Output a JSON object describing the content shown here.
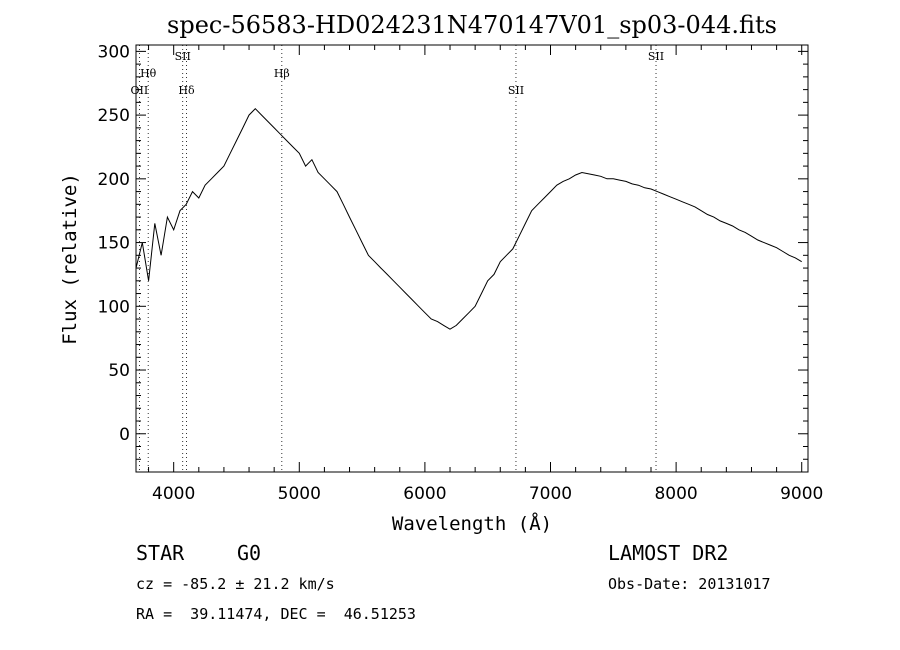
{
  "chart_data": {
    "type": "line",
    "title": "spec-56583-HD024231N470147V01_sp03-044.fits",
    "xlabel": "Wavelength (Å)",
    "ylabel": "Flux (relative)",
    "xlim": [
      3700,
      9050
    ],
    "ylim": [
      -30,
      305
    ],
    "x_ticks": [
      4000,
      5000,
      6000,
      7000,
      8000,
      9000
    ],
    "y_ticks": [
      0,
      50,
      100,
      150,
      200,
      250,
      300
    ],
    "grid": false,
    "spectral_lines": [
      {
        "label": "OII",
        "wavelength": 3727,
        "row": 3
      },
      {
        "label": "Hθ",
        "wavelength": 3797,
        "row": 1
      },
      {
        "label": "SII",
        "wavelength": 4072,
        "row": 0
      },
      {
        "label": "Hδ",
        "wavelength": 4102,
        "row": 2
      },
      {
        "label": "Hβ",
        "wavelength": 4861,
        "row": 1
      },
      {
        "label": "SII",
        "wavelength": 6725,
        "row": 2
      },
      {
        "label": "SII",
        "wavelength": 7840,
        "row": 0
      }
    ],
    "series": [
      {
        "x": [
          3700,
          3750,
          3800,
          3850,
          3900,
          3950,
          4000,
          4050,
          4100,
          4150,
          4200,
          4250,
          4300,
          4350,
          4400,
          4450,
          4500,
          4550,
          4600,
          4650,
          4700,
          4750,
          4800,
          4850,
          4900,
          4950,
          5000,
          5050,
          5100,
          5150,
          5200,
          5250,
          5300,
          5350,
          5400,
          5450,
          5500,
          5550,
          5600,
          5650,
          5700,
          5750,
          5800,
          5850,
          5900,
          5950,
          6000,
          6050,
          6100,
          6150,
          6200,
          6250,
          6300,
          6350,
          6400,
          6450,
          6500,
          6550,
          6600,
          6650,
          6700,
          6750,
          6800,
          6850,
          6900,
          6950,
          7000,
          7050,
          7100,
          7150,
          7200,
          7250,
          7300,
          7350,
          7400,
          7450,
          7500,
          7550,
          7600,
          7650,
          7700,
          7750,
          7800,
          7850,
          7900,
          7950,
          8000,
          8050,
          8100,
          8150,
          8200,
          8250,
          8300,
          8350,
          8400,
          8450,
          8500,
          8550,
          8600,
          8650,
          8700,
          8750,
          8800,
          8850,
          8900,
          8950,
          9000
        ],
        "values": [
          130,
          150,
          120,
          165,
          140,
          170,
          160,
          175,
          180,
          190,
          185,
          195,
          200,
          205,
          210,
          220,
          230,
          240,
          250,
          255,
          250,
          245,
          240,
          235,
          230,
          225,
          220,
          210,
          215,
          205,
          200,
          195,
          190,
          180,
          170,
          160,
          150,
          140,
          135,
          130,
          125,
          120,
          115,
          110,
          105,
          100,
          95,
          90,
          88,
          85,
          82,
          85,
          90,
          95,
          100,
          110,
          120,
          125,
          135,
          140,
          145,
          155,
          165,
          175,
          180,
          185,
          190,
          195,
          198,
          200,
          203,
          205,
          204,
          203,
          202,
          200,
          200,
          199,
          198,
          196,
          195,
          193,
          192,
          190,
          188,
          186,
          184,
          182,
          180,
          178,
          175,
          172,
          170,
          167,
          165,
          163,
          160,
          158,
          155,
          152,
          150,
          148,
          146,
          143,
          140,
          138,
          135
        ]
      }
    ]
  },
  "info": {
    "object_type": "STAR",
    "subclass": "G0",
    "survey": "LAMOST DR2",
    "cz": "cz = -85.2 ± 21.2 km/s",
    "obs_date": "Obs-Date: 20131017",
    "coords": "RA =  39.11474, DEC =  46.51253"
  }
}
